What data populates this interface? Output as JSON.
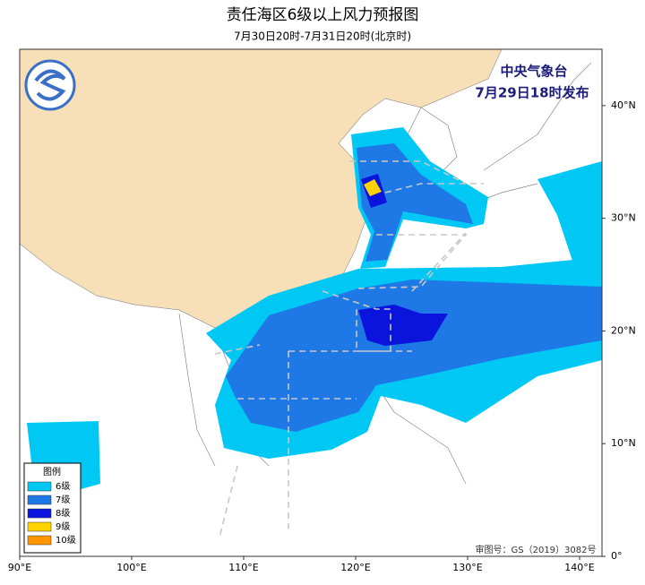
{
  "header": {
    "title": "责任海区6级以上风力预报图",
    "subtitle": "7月30日20时-7月31日20时(北京时)"
  },
  "issuer": {
    "name": "中央气象台",
    "time": "7月29日18时发布"
  },
  "map": {
    "xlim": [
      90,
      142
    ],
    "ylim": [
      0,
      45
    ],
    "xticks": [
      {
        "value": 90,
        "label": "90°E"
      },
      {
        "value": 100,
        "label": "100°E"
      },
      {
        "value": 110,
        "label": "110°E"
      },
      {
        "value": 120,
        "label": "120°E"
      },
      {
        "value": 130,
        "label": "130°E"
      },
      {
        "value": 140,
        "label": "140°E"
      }
    ],
    "yticks": [
      {
        "value": 0,
        "label": "0°"
      },
      {
        "value": 10,
        "label": "10°N"
      },
      {
        "value": 20,
        "label": "20°N"
      },
      {
        "value": 30,
        "label": "30°N"
      },
      {
        "value": 40,
        "label": "40°N"
      }
    ]
  },
  "legend": {
    "title": "图例",
    "items": [
      {
        "name": "6级",
        "color": "#00c8f5"
      },
      {
        "name": "7级",
        "color": "#1e78e6"
      },
      {
        "name": "8级",
        "color": "#0a14dc"
      },
      {
        "name": "9级",
        "color": "#ffd200"
      },
      {
        "name": "10级",
        "color": "#ff9600"
      }
    ]
  },
  "approval": "审图号：GS（2019）3082号"
}
